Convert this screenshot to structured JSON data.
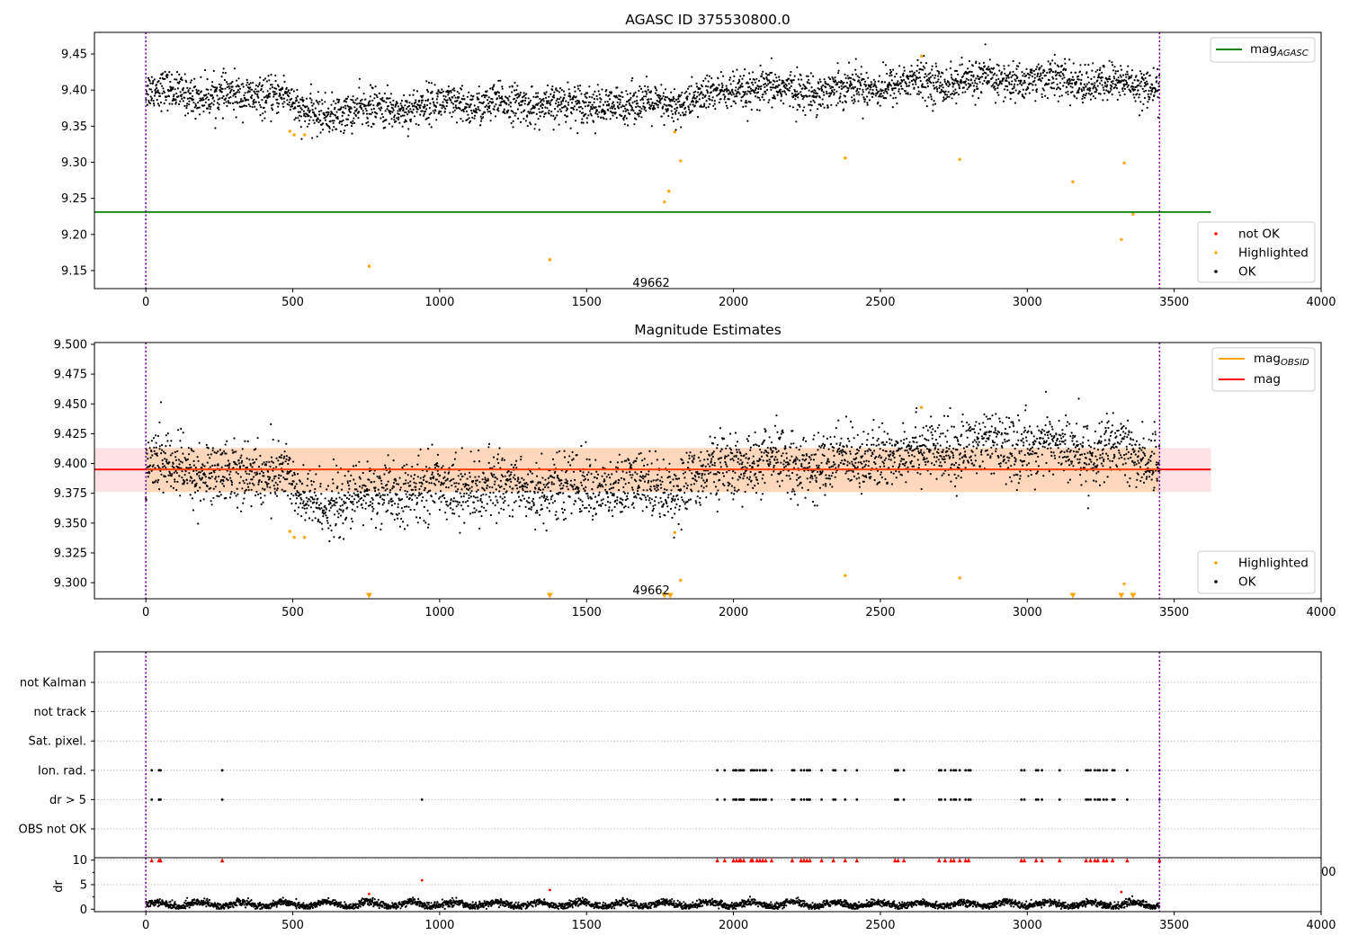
{
  "chart_data": [
    {
      "type": "scatter",
      "title": "AGASC ID 375530800.0",
      "xlim": [
        -175,
        4000
      ],
      "ylim": [
        9.125,
        9.48
      ],
      "xticks": [
        0,
        500,
        1000,
        1500,
        2000,
        2500,
        3000,
        3500,
        4000
      ],
      "yticks": [
        9.15,
        9.2,
        9.25,
        9.3,
        9.35,
        9.4,
        9.45
      ],
      "vlines": [
        0,
        3450
      ],
      "hline": {
        "name": "mag_AGASC",
        "value": 9.231,
        "color": "#008000"
      },
      "annotation": {
        "text": "49662",
        "x": 1720,
        "y": 9.14
      },
      "legend_lines": [
        {
          "label": "mag",
          "sub": "AGASC",
          "color": "#008000"
        }
      ],
      "legend_points": [
        {
          "label": "not OK",
          "color": "#ff0000"
        },
        {
          "label": "Highlighted",
          "color": "#ffa500"
        },
        {
          "label": "OK",
          "color": "#000000"
        }
      ],
      "series": [
        {
          "name": "OK",
          "color": "#000000",
          "style": "dense",
          "x_range": [
            0,
            3450
          ],
          "approx_points": 3400,
          "trend_x": [
            0,
            300,
            480,
            520,
            1000,
            1500,
            1800,
            2000,
            2300,
            2600,
            3000,
            3450
          ],
          "trend_y": [
            9.4,
            9.39,
            9.395,
            9.365,
            9.38,
            9.38,
            9.38,
            9.4,
            9.4,
            9.41,
            9.415,
            9.405
          ],
          "spread": 0.013
        },
        {
          "name": "Highlighted",
          "color": "#ffa500",
          "x": [
            490,
            505,
            540,
            760,
            1375,
            1765,
            1780,
            1800,
            1820,
            2380,
            2640,
            2770,
            3155,
            3320,
            3330,
            3360
          ],
          "y": [
            9.343,
            9.338,
            9.338,
            9.156,
            9.165,
            9.245,
            9.26,
            9.342,
            9.302,
            9.306,
            9.447,
            9.304,
            9.273,
            9.193,
            9.299,
            9.228
          ]
        }
      ]
    },
    {
      "type": "scatter",
      "title": "Magnitude Estimates",
      "xlim": [
        -175,
        4000
      ],
      "ylim": [
        9.2865,
        9.5015
      ],
      "xticks": [
        0,
        500,
        1000,
        1500,
        2000,
        2500,
        3000,
        3500,
        4000
      ],
      "yticks": [
        9.3,
        9.325,
        9.35,
        9.375,
        9.4,
        9.425,
        9.45,
        9.475,
        9.5
      ],
      "vlines": [
        0,
        3450
      ],
      "hline": {
        "name": "mag",
        "value": 9.395,
        "color": "#ff0000"
      },
      "band": {
        "low": 9.376,
        "high": 9.413
      },
      "annotation": {
        "text": "49662",
        "x": 1720,
        "y": 9.294
      },
      "legend_lines": [
        {
          "label": "mag",
          "sub": "OBSID",
          "color": "#ffa500"
        },
        {
          "label": "mag",
          "sub": "",
          "color": "#ff0000"
        }
      ],
      "legend_points": [
        {
          "label": "Highlighted",
          "color": "#ffa500"
        },
        {
          "label": "OK",
          "color": "#000000"
        }
      ],
      "series": [
        {
          "name": "OK",
          "color": "#000000",
          "style": "dense",
          "x_range": [
            0,
            3450
          ],
          "approx_points": 3400,
          "trend_x": [
            0,
            300,
            480,
            520,
            1000,
            1500,
            1800,
            2000,
            2300,
            2600,
            3000,
            3450
          ],
          "trend_y": [
            9.4,
            9.39,
            9.395,
            9.365,
            9.38,
            9.38,
            9.38,
            9.4,
            9.4,
            9.41,
            9.415,
            9.405
          ],
          "spread": 0.013
        },
        {
          "name": "Highlighted",
          "color": "#ffa500",
          "x": [
            490,
            505,
            540,
            1800,
            1820,
            2380,
            2640,
            2770,
            3330
          ],
          "y": [
            9.343,
            9.338,
            9.338,
            9.342,
            9.302,
            9.306,
            9.447,
            9.304,
            9.299
          ]
        },
        {
          "name": "Highlighted (below range)",
          "color": "#ffa500",
          "marker": "triangle",
          "x": [
            760,
            1375,
            1765,
            1785,
            3155,
            3320,
            3360
          ]
        }
      ]
    },
    {
      "type": "scatter",
      "title": "",
      "xlim": [
        -175,
        4000
      ],
      "categories": [
        "not Kalman",
        "not track",
        "Sat. pixel.",
        "Ion. rad.",
        "dr > 5",
        "OBS not OK"
      ],
      "vlines": [
        0,
        3450
      ],
      "flag_x": [
        20,
        45,
        50,
        260,
        1945,
        1970,
        2000,
        2010,
        2020,
        2025,
        2035,
        2060,
        2065,
        2080,
        2090,
        2100,
        2110,
        2130,
        2200,
        2230,
        2240,
        2250,
        2260,
        2300,
        2340,
        2380,
        2420,
        2550,
        2560,
        2580,
        2700,
        2720,
        2740,
        2750,
        2770,
        2790,
        2800,
        2980,
        2990,
        3030,
        3050,
        3110,
        3200,
        3215,
        3230,
        3240,
        3260,
        3270,
        3290,
        3340,
        3450
      ],
      "flags": [
        {
          "category": "Ion. rad.",
          "source": "flag_x"
        },
        {
          "category": "dr > 5",
          "source": "flag_x_plus",
          "extra_x": [
            940
          ]
        }
      ]
    },
    {
      "type": "scatter",
      "title": "",
      "ylabel": "dr",
      "xlim": [
        -175,
        4000
      ],
      "ylim": [
        -0.5,
        10.5
      ],
      "xticks": [
        0,
        500,
        1000,
        1500,
        2000,
        2500,
        3000,
        3500,
        4000
      ],
      "yticks": [
        0,
        5,
        10
      ],
      "vlines": [
        0,
        3450
      ],
      "edge_label": "00",
      "series": [
        {
          "name": "OK",
          "color": "#000000",
          "style": "dense",
          "x_range": [
            0,
            3450
          ],
          "approx_points": 3400,
          "mean": 1.0,
          "spread": 0.6
        },
        {
          "name": "not OK",
          "color": "#ff0000",
          "x": [
            760,
            940,
            1375,
            3320
          ],
          "y": [
            3.1,
            5.9,
            3.9,
            3.5
          ]
        },
        {
          "name": "not OK (clipped)",
          "color": "#ff0000",
          "marker": "triangle",
          "value": 10
        }
      ]
    }
  ]
}
